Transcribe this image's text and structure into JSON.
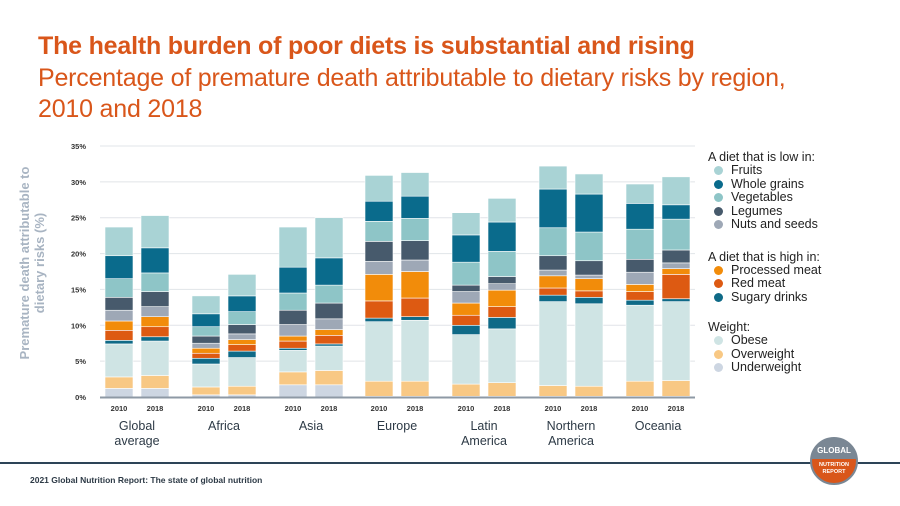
{
  "header": {
    "title": "The health burden of poor diets is substantial and rising",
    "subtitle": "Percentage of premature death attributable to dietary risks by region, 2010 and 2018"
  },
  "footer": {
    "source": "2021 Global Nutrition Report: The state of global nutrition",
    "logo_top": "GLOBAL",
    "logo_bottom_1": "NUTRITION",
    "logo_bottom_2": "REPORT"
  },
  "legend": {
    "groups": [
      {
        "header": "A diet that is low in:",
        "items": [
          {
            "label": "Fruits",
            "color": "#a9d3d5"
          },
          {
            "label": "Whole grains",
            "color": "#0a6b8c"
          },
          {
            "label": "Vegetables",
            "color": "#8ec5c7"
          },
          {
            "label": "Legumes",
            "color": "#475a6c"
          },
          {
            "label": "Nuts and seeds",
            "color": "#9ea8b6"
          }
        ]
      },
      {
        "header": "A diet that is high in:",
        "items": [
          {
            "label": "Processed meat",
            "color": "#f28c0a"
          },
          {
            "label": "Red meat",
            "color": "#dd5a12"
          },
          {
            "label": "Sugary drinks",
            "color": "#0f6a87"
          }
        ]
      },
      {
        "header": "Weight:",
        "items": [
          {
            "label": "Obese",
            "color": "#cfe4e4"
          },
          {
            "label": "Overweight",
            "color": "#f8c884"
          },
          {
            "label": "Underweight",
            "color": "#cdd6e2"
          }
        ]
      }
    ]
  },
  "chart_data": {
    "type": "bar",
    "stacked": true,
    "title": "Percentage of premature death attributable to dietary risks by region, 2010 and 2018",
    "xlabel": "",
    "ylabel": "Premature death attributable to dietary risks (%)",
    "ylim": [
      0,
      35
    ],
    "yticks": [
      "0%",
      "5%",
      "10%",
      "15%",
      "20%",
      "25%",
      "30%",
      "35%"
    ],
    "ytick_values": [
      0,
      5,
      10,
      15,
      20,
      25,
      30,
      35
    ],
    "grid": true,
    "legend_position": "right",
    "regions": [
      "Global average",
      "Africa",
      "Asia",
      "Europe",
      "Latin America",
      "Northern America",
      "Oceania"
    ],
    "region_lines": [
      [
        "Global",
        "average"
      ],
      [
        "Africa"
      ],
      [
        "Asia"
      ],
      [
        "Europe"
      ],
      [
        "Latin",
        "America"
      ],
      [
        "Northern",
        "America"
      ],
      [
        "Oceania"
      ]
    ],
    "years": [
      "2010",
      "2018"
    ],
    "categories": [
      "Global average 2010",
      "Global average 2018",
      "Africa 2010",
      "Africa 2018",
      "Asia 2010",
      "Asia 2018",
      "Europe 2010",
      "Europe 2018",
      "Latin America 2010",
      "Latin America 2018",
      "Northern America 2010",
      "Northern America 2018",
      "Oceania 2010",
      "Oceania 2018"
    ],
    "series": [
      {
        "name": "Underweight",
        "color": "#cdd6e2",
        "values": [
          1.2,
          1.2,
          0.3,
          0.3,
          1.7,
          1.7,
          0.1,
          0.1,
          0.1,
          0.1,
          0.1,
          0.1,
          0.1,
          0.1
        ]
      },
      {
        "name": "Overweight",
        "color": "#f8c884",
        "values": [
          1.6,
          1.8,
          1.1,
          1.2,
          1.8,
          2.0,
          2.1,
          2.1,
          1.7,
          1.9,
          1.5,
          1.4,
          2.1,
          2.2
        ]
      },
      {
        "name": "Obese",
        "color": "#cfe4e4",
        "values": [
          4.6,
          4.8,
          3.2,
          4.0,
          3.0,
          3.4,
          8.3,
          8.5,
          6.9,
          7.5,
          11.7,
          11.5,
          10.6,
          11.0
        ]
      },
      {
        "name": "Sugary drinks",
        "color": "#0f6a87",
        "values": [
          0.5,
          0.6,
          0.8,
          0.9,
          0.3,
          0.3,
          0.5,
          0.5,
          1.3,
          1.6,
          0.9,
          0.9,
          0.7,
          0.4
        ]
      },
      {
        "name": "Red meat",
        "color": "#dd5a12",
        "values": [
          1.4,
          1.4,
          0.7,
          0.9,
          1.0,
          1.2,
          2.4,
          2.6,
          1.4,
          1.5,
          1.0,
          0.9,
          1.2,
          3.4
        ]
      },
      {
        "name": "Processed meat",
        "color": "#f28c0a",
        "values": [
          1.3,
          1.4,
          0.7,
          0.7,
          0.7,
          0.8,
          3.7,
          3.7,
          1.7,
          2.3,
          1.7,
          1.7,
          1.0,
          0.8
        ]
      },
      {
        "name": "Nuts and seeds",
        "color": "#9ea8b6",
        "values": [
          1.5,
          1.4,
          0.7,
          0.8,
          1.6,
          1.5,
          1.8,
          1.6,
          1.6,
          0.9,
          0.8,
          0.5,
          1.7,
          0.8
        ]
      },
      {
        "name": "Legumes",
        "color": "#475a6c",
        "values": [
          1.8,
          2.1,
          1.0,
          1.3,
          2.0,
          2.2,
          2.8,
          2.7,
          0.9,
          1.0,
          2.0,
          2.0,
          1.8,
          1.8
        ]
      },
      {
        "name": "Vegetables",
        "color": "#8ec5c7",
        "values": [
          2.6,
          2.6,
          1.3,
          1.8,
          2.4,
          2.5,
          2.8,
          3.1,
          3.2,
          3.5,
          3.9,
          4.0,
          4.2,
          4.3
        ]
      },
      {
        "name": "Whole grains",
        "color": "#0a6b8c",
        "values": [
          3.2,
          3.5,
          1.8,
          2.2,
          3.6,
          3.8,
          2.8,
          3.1,
          3.8,
          4.1,
          5.4,
          5.3,
          3.6,
          2.0
        ]
      },
      {
        "name": "Fruits",
        "color": "#a9d3d5",
        "values": [
          4.0,
          4.5,
          2.5,
          3.0,
          5.6,
          5.6,
          3.6,
          3.3,
          3.1,
          3.3,
          3.2,
          2.8,
          2.7,
          3.9
        ]
      }
    ]
  }
}
